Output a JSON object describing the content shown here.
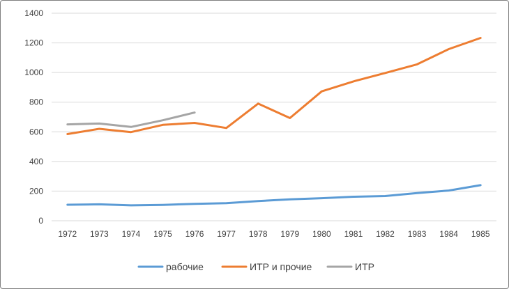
{
  "chart_data": {
    "type": "line",
    "x": [
      "1972",
      "1973",
      "1974",
      "1975",
      "1976",
      "1977",
      "1978",
      "1979",
      "1980",
      "1981",
      "1982",
      "1983",
      "1984",
      "1985"
    ],
    "ylim": [
      0,
      1400
    ],
    "yticks": [
      0,
      200,
      400,
      600,
      800,
      1000,
      1200,
      1400
    ],
    "grid": true,
    "legend_position": "bottom",
    "series": [
      {
        "name": "рабочие",
        "color": "#5B9BD5",
        "values": [
          108,
          111,
          104,
          107,
          114,
          119,
          133,
          144,
          152,
          162,
          167,
          187,
          204,
          240
        ]
      },
      {
        "name": "ИТР и прочие",
        "color": "#ED7D31",
        "values": [
          585,
          620,
          598,
          647,
          660,
          626,
          790,
          693,
          873,
          940,
          997,
          1055,
          1158,
          1233
        ]
      },
      {
        "name": "ИТР",
        "color": "#A5A5A5",
        "values": [
          650,
          656,
          633,
          678,
          730,
          null,
          null,
          null,
          null,
          null,
          null,
          null,
          null,
          null
        ]
      }
    ]
  }
}
